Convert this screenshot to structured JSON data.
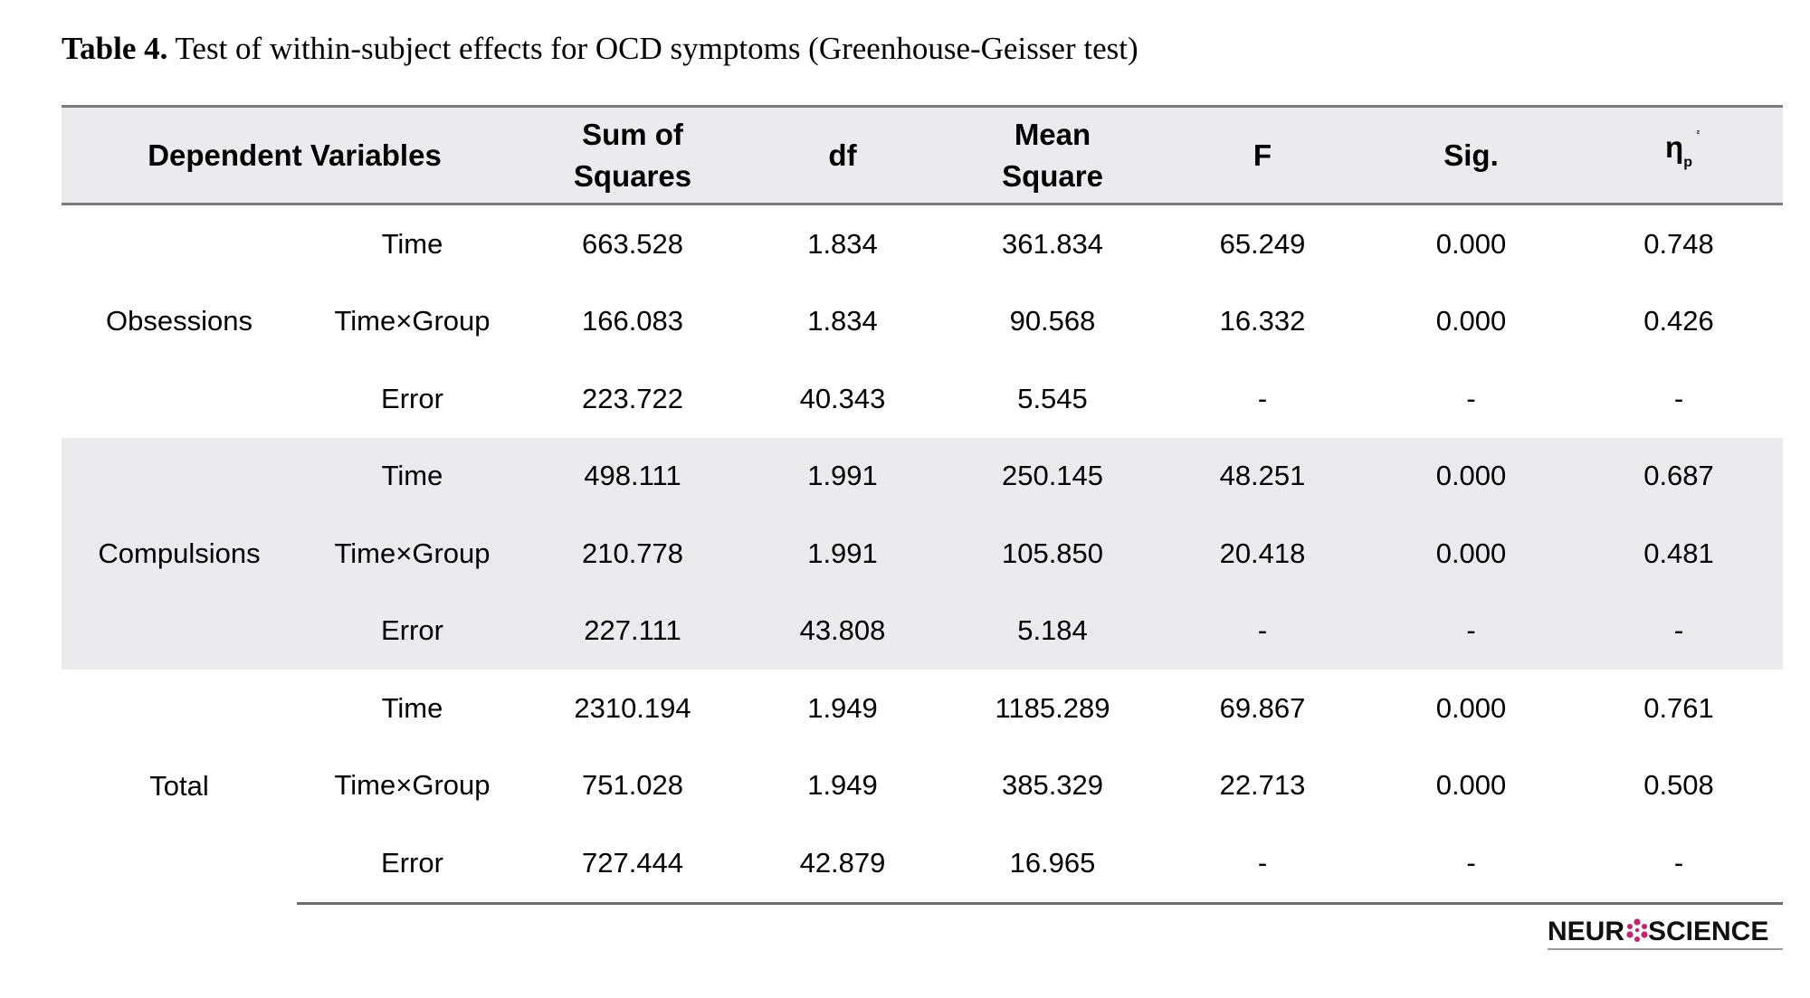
{
  "caption": {
    "label": "Table 4.",
    "text": " Test of within-subject effects for OCD symptoms (Greenhouse-Geisser test)"
  },
  "table": {
    "headers": {
      "dependent_variables": "Dependent Variables",
      "sum_of_squares_line1": "Sum of",
      "sum_of_squares_line2": "Squares",
      "df": "df",
      "mean_square_line1": "Mean",
      "mean_square_line2": "Square",
      "f": "F",
      "sig": "Sig.",
      "eta_symbol": "η",
      "eta_sub": "p",
      "eta_sup": "²"
    },
    "groups": [
      {
        "name": "Obsessions",
        "rows": [
          {
            "effect": "Time",
            "ss": "663.528",
            "df": "1.834",
            "ms": "361.834",
            "f": "65.249",
            "sig": "0.000",
            "eta": "0.748"
          },
          {
            "effect": "Time×Group",
            "ss": "166.083",
            "df": "1.834",
            "ms": "90.568",
            "f": "16.332",
            "sig": "0.000",
            "eta": "0.426"
          },
          {
            "effect": "Error",
            "ss": "223.722",
            "df": "40.343",
            "ms": "5.545",
            "f": "-",
            "sig": "-",
            "eta": "-"
          }
        ]
      },
      {
        "name": "Compulsions",
        "rows": [
          {
            "effect": "Time",
            "ss": "498.111",
            "df": "1.991",
            "ms": "250.145",
            "f": "48.251",
            "sig": "0.000",
            "eta": "0.687"
          },
          {
            "effect": "Time×Group",
            "ss": "210.778",
            "df": "1.991",
            "ms": "105.850",
            "f": "20.418",
            "sig": "0.000",
            "eta": "0.481"
          },
          {
            "effect": "Error",
            "ss": "227.111",
            "df": "43.808",
            "ms": "5.184",
            "f": "-",
            "sig": "-",
            "eta": "-"
          }
        ]
      },
      {
        "name": "Total",
        "rows": [
          {
            "effect": "Time",
            "ss": "2310.194",
            "df": "1.949",
            "ms": "1185.289",
            "f": "69.867",
            "sig": "0.000",
            "eta": "0.761"
          },
          {
            "effect": "Time×Group",
            "ss": "751.028",
            "df": "1.949",
            "ms": "385.329",
            "f": "22.713",
            "sig": "0.000",
            "eta": "0.508"
          },
          {
            "effect": "Error",
            "ss": "727.444",
            "df": "42.879",
            "ms": "16.965",
            "f": "-",
            "sig": "-",
            "eta": "-"
          }
        ]
      }
    ]
  },
  "logo": {
    "text_left": "NEUR",
    "text_right": "SCIENCE",
    "accent_color": "#c0246e"
  }
}
